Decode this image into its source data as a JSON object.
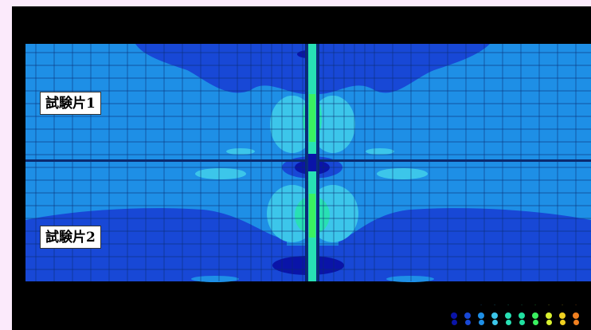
{
  "specimens": {
    "label_1": "試験片1",
    "label_2": "試験片2"
  },
  "colors": {
    "page_background": "#fbeafb",
    "frame_background": "#000000",
    "base_field": "#1e8fe6",
    "low_field": "#1848d6",
    "lowest_field": "#0a14a8",
    "mid_field": "#3cc6ea",
    "high_field": "#28e0b4",
    "peak_field": "#3af060",
    "mesh_lines": "#0b2a6e",
    "center_bar": "#0a2d80"
  },
  "legend": {
    "items": [
      {
        "label": "",
        "color": "#0a14a8"
      },
      {
        "label": "",
        "color": "#1848d6"
      },
      {
        "label": "·",
        "color": "#1e8fe6"
      },
      {
        "label": "·",
        "color": "#3cc6ea"
      },
      {
        "label": "·",
        "color": "#28e0b4"
      },
      {
        "label": "·",
        "color": "#20e0a0"
      },
      {
        "label": "·",
        "color": "#3af060"
      },
      {
        "label": "·",
        "color": "#d8f030"
      },
      {
        "label": "·",
        "color": "#f0d020"
      },
      {
        "label": "·",
        "color": "#f08020"
      }
    ]
  }
}
